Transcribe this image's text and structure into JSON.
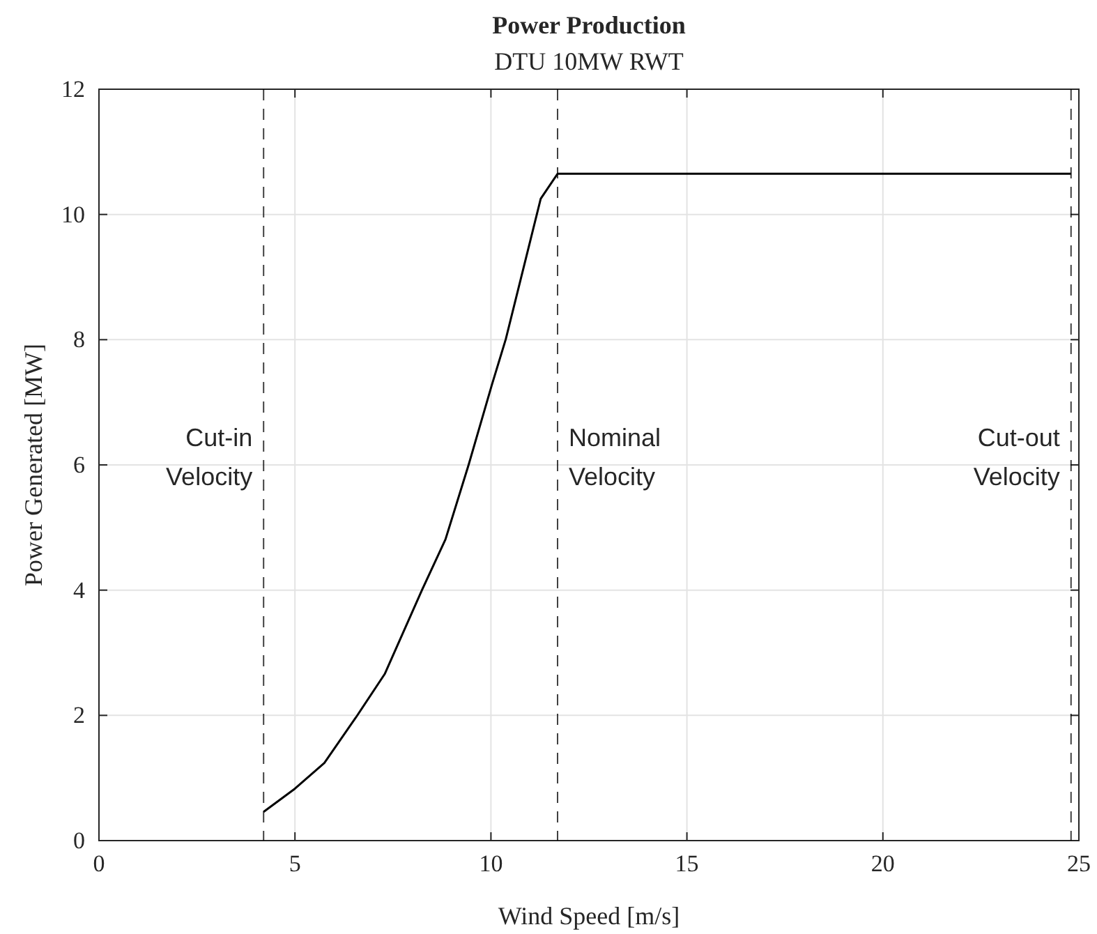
{
  "chart_data": {
    "type": "line",
    "title": "Power Production",
    "subtitle": "DTU 10MW RWT",
    "xlabel": "Wind Speed [m/s]",
    "ylabel": "Power Generated [MW]",
    "x": [
      4.2,
      5.0,
      5.75,
      6.58,
      7.29,
      8.24,
      8.84,
      9.43,
      10.02,
      10.38,
      11.27,
      11.7,
      24.8
    ],
    "series": [
      {
        "color": "#000000",
        "values": [
          0.46,
          0.83,
          1.24,
          1.99,
          2.66,
          4.0,
          4.81,
          6.0,
          7.27,
          8.01,
          10.25,
          10.65,
          10.65
        ]
      }
    ],
    "xlim": [
      0,
      25
    ],
    "xticks": [
      0,
      5,
      10,
      15,
      20,
      25
    ],
    "ylim": [
      0,
      12
    ],
    "yticks": [
      0,
      2,
      4,
      6,
      8,
      10,
      12
    ],
    "grid": true,
    "line_style": "solid",
    "ref_lines": [
      {
        "axis": "x",
        "value": 4.2,
        "label": "Cut-in Velocity",
        "line_style": "dashed",
        "color": "#000000"
      },
      {
        "axis": "x",
        "value": 11.7,
        "label": "Nominal Velocity",
        "line_style": "dashed",
        "color": "#000000"
      },
      {
        "axis": "x",
        "value": 24.8,
        "label": "Cut-out Velocity",
        "line_style": "dashed",
        "color": "#000000"
      }
    ]
  }
}
